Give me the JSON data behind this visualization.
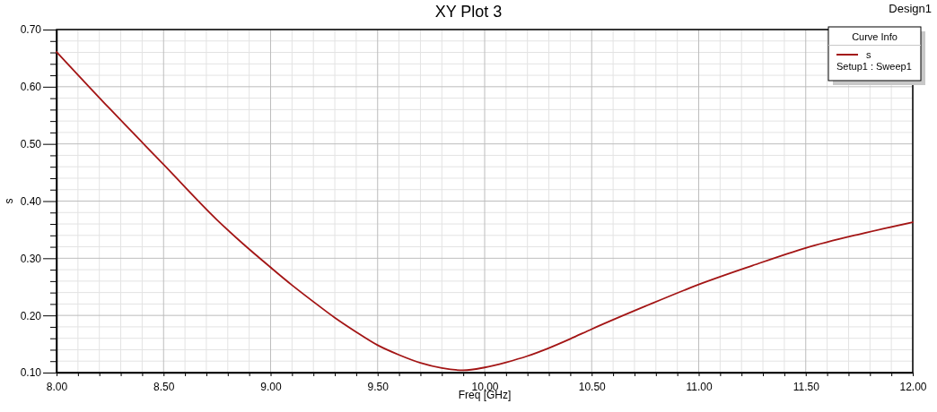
{
  "chart_data": {
    "type": "line",
    "title": "XY Plot 3",
    "xlabel": "Freq [GHz]",
    "ylabel": "s",
    "legend_title": "Curve Info",
    "annotations": [
      "Design1",
      "Setup1 : Sweep1"
    ],
    "x": [
      8.0,
      8.25,
      8.5,
      8.75,
      8.875,
      9.0,
      9.1,
      9.2,
      9.3,
      9.4,
      9.5,
      9.6,
      9.7,
      9.8,
      9.9,
      10.0,
      10.1,
      10.2,
      10.3,
      10.4,
      10.5,
      10.75,
      11.0,
      11.25,
      11.5,
      11.75,
      12.0
    ],
    "series": [
      {
        "name": "s",
        "color": "#a31515",
        "values": [
          0.661,
          0.561,
          0.464,
          0.367,
          0.324,
          0.284,
          0.253,
          0.224,
          0.196,
          0.171,
          0.148,
          0.131,
          0.117,
          0.108,
          0.104,
          0.109,
          0.118,
          0.129,
          0.143,
          0.159,
          0.176,
          0.216,
          0.254,
          0.287,
          0.318,
          0.342,
          0.363
        ]
      }
    ],
    "xlim": [
      8,
      12
    ],
    "ylim": [
      0.1,
      0.7
    ],
    "xticks": [
      {
        "value": 8.0,
        "label": "8.00"
      },
      {
        "value": 8.1,
        "label": null
      },
      {
        "value": 8.2,
        "label": null
      },
      {
        "value": 8.3,
        "label": null
      },
      {
        "value": 8.4,
        "label": null
      },
      {
        "value": 8.5,
        "label": "8.50"
      },
      {
        "value": 8.6,
        "label": null
      },
      {
        "value": 8.7,
        "label": null
      },
      {
        "value": 8.8,
        "label": null
      },
      {
        "value": 8.9,
        "label": null
      },
      {
        "value": 9.0,
        "label": "9.00"
      },
      {
        "value": 9.1,
        "label": null
      },
      {
        "value": 9.2,
        "label": null
      },
      {
        "value": 9.3,
        "label": null
      },
      {
        "value": 9.4,
        "label": null
      },
      {
        "value": 9.5,
        "label": "9.50"
      },
      {
        "value": 9.6,
        "label": null
      },
      {
        "value": 9.7,
        "label": null
      },
      {
        "value": 9.8,
        "label": null
      },
      {
        "value": 9.9,
        "label": null
      },
      {
        "value": 10.0,
        "label": "10.00"
      },
      {
        "value": 10.1,
        "label": null
      },
      {
        "value": 10.2,
        "label": null
      },
      {
        "value": 10.3,
        "label": null
      },
      {
        "value": 10.4,
        "label": null
      },
      {
        "value": 10.5,
        "label": "10.50"
      },
      {
        "value": 10.6,
        "label": null
      },
      {
        "value": 10.7,
        "label": null
      },
      {
        "value": 10.8,
        "label": null
      },
      {
        "value": 10.9,
        "label": null
      },
      {
        "value": 11.0,
        "label": "11.00"
      },
      {
        "value": 11.1,
        "label": null
      },
      {
        "value": 11.2,
        "label": null
      },
      {
        "value": 11.3,
        "label": null
      },
      {
        "value": 11.4,
        "label": null
      },
      {
        "value": 11.5,
        "label": "11.50"
      },
      {
        "value": 11.6,
        "label": null
      },
      {
        "value": 11.7,
        "label": null
      },
      {
        "value": 11.8,
        "label": null
      },
      {
        "value": 11.9,
        "label": null
      },
      {
        "value": 12.0,
        "label": "12.00"
      }
    ],
    "yticks": [
      {
        "value": 0.1,
        "label": "0.10"
      },
      {
        "value": 0.12,
        "label": null
      },
      {
        "value": 0.14,
        "label": null
      },
      {
        "value": 0.16,
        "label": null
      },
      {
        "value": 0.18,
        "label": null
      },
      {
        "value": 0.2,
        "label": "0.20"
      },
      {
        "value": 0.22,
        "label": null
      },
      {
        "value": 0.24,
        "label": null
      },
      {
        "value": 0.26,
        "label": null
      },
      {
        "value": 0.28,
        "label": null
      },
      {
        "value": 0.3,
        "label": "0.30"
      },
      {
        "value": 0.32,
        "label": null
      },
      {
        "value": 0.34,
        "label": null
      },
      {
        "value": 0.36,
        "label": null
      },
      {
        "value": 0.38,
        "label": null
      },
      {
        "value": 0.4,
        "label": "0.40"
      },
      {
        "value": 0.42,
        "label": null
      },
      {
        "value": 0.44,
        "label": null
      },
      {
        "value": 0.46,
        "label": null
      },
      {
        "value": 0.48,
        "label": null
      },
      {
        "value": 0.5,
        "label": "0.50"
      },
      {
        "value": 0.52,
        "label": null
      },
      {
        "value": 0.54,
        "label": null
      },
      {
        "value": 0.56,
        "label": null
      },
      {
        "value": 0.58,
        "label": null
      },
      {
        "value": 0.6,
        "label": "0.60"
      },
      {
        "value": 0.62,
        "label": null
      },
      {
        "value": 0.64,
        "label": null
      },
      {
        "value": 0.66,
        "label": null
      },
      {
        "value": 0.68,
        "label": null
      },
      {
        "value": 0.7,
        "label": "0.70"
      }
    ],
    "grid": true,
    "legend": "top right",
    "line_style": "solid"
  }
}
